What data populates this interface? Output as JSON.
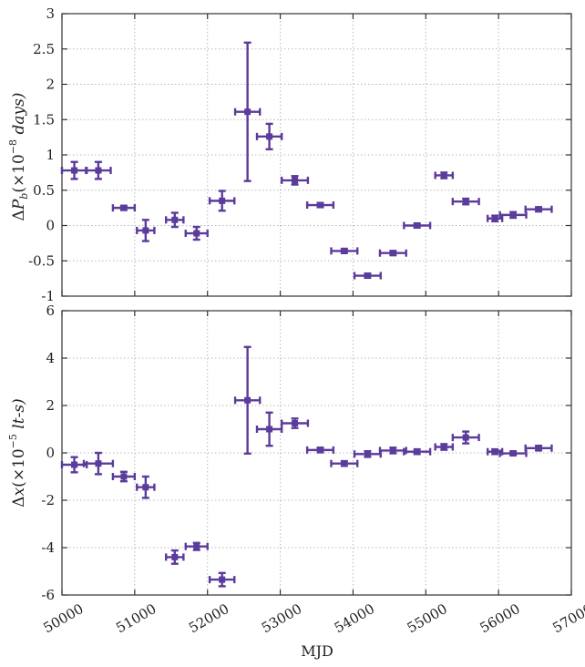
{
  "chart_data": [
    {
      "type": "scatter",
      "ylabel": "ΔP_b(×10^-8 days)",
      "xlabel": "",
      "xlim": [
        50000,
        57000
      ],
      "ylim": [
        -1,
        3
      ],
      "yticks": [
        "3",
        "2.5",
        "2",
        "1.5",
        "1",
        "0.5",
        "0",
        "-0.5",
        "-1"
      ],
      "yticks_values": [
        3,
        2.5,
        2,
        1.5,
        1,
        0.5,
        0,
        -0.5,
        -1
      ],
      "grid": true,
      "color": "#5b3b9b",
      "points": [
        {
          "x": 50170,
          "xerr": 170,
          "y": 0.78,
          "yerr": 0.12
        },
        {
          "x": 50500,
          "xerr": 170,
          "y": 0.78,
          "yerr": 0.12
        },
        {
          "x": 50850,
          "xerr": 150,
          "y": 0.25,
          "yerr": 0.03
        },
        {
          "x": 51150,
          "xerr": 120,
          "y": -0.07,
          "yerr": 0.15
        },
        {
          "x": 51550,
          "xerr": 120,
          "y": 0.08,
          "yerr": 0.1
        },
        {
          "x": 51850,
          "xerr": 150,
          "y": -0.11,
          "yerr": 0.09
        },
        {
          "x": 52200,
          "xerr": 170,
          "y": 0.35,
          "yerr": 0.14
        },
        {
          "x": 52550,
          "xerr": 170,
          "y": 1.61,
          "yerr": 0.98
        },
        {
          "x": 52850,
          "xerr": 170,
          "y": 1.26,
          "yerr": 0.18
        },
        {
          "x": 53200,
          "xerr": 180,
          "y": 0.64,
          "yerr": 0.06
        },
        {
          "x": 53550,
          "xerr": 180,
          "y": 0.29,
          "yerr": 0.03
        },
        {
          "x": 53880,
          "xerr": 180,
          "y": -0.36,
          "yerr": 0.03
        },
        {
          "x": 54200,
          "xerr": 180,
          "y": -0.71,
          "yerr": 0.03
        },
        {
          "x": 54550,
          "xerr": 180,
          "y": -0.39,
          "yerr": 0.03
        },
        {
          "x": 54880,
          "xerr": 180,
          "y": 0.0,
          "yerr": 0.03
        },
        {
          "x": 55250,
          "xerr": 120,
          "y": 0.71,
          "yerr": 0.04
        },
        {
          "x": 55550,
          "xerr": 180,
          "y": 0.34,
          "yerr": 0.04
        },
        {
          "x": 55950,
          "xerr": 100,
          "y": 0.1,
          "yerr": 0.04
        },
        {
          "x": 56200,
          "xerr": 180,
          "y": 0.15,
          "yerr": 0.04
        },
        {
          "x": 56550,
          "xerr": 180,
          "y": 0.23,
          "yerr": 0.03
        }
      ]
    },
    {
      "type": "scatter",
      "ylabel": "Δx(×10^-5 lt-s)",
      "xlabel": "MJD",
      "xlim": [
        50000,
        57000
      ],
      "ylim": [
        -6,
        6
      ],
      "xticks": [
        "50000",
        "51000",
        "52000",
        "53000",
        "54000",
        "55000",
        "56000",
        "57000"
      ],
      "xticks_values": [
        50000,
        51000,
        52000,
        53000,
        54000,
        55000,
        56000,
        57000
      ],
      "yticks": [
        "6",
        "4",
        "2",
        "0",
        "-2",
        "-4",
        "-6"
      ],
      "yticks_values": [
        6,
        4,
        2,
        0,
        -2,
        -4,
        -6
      ],
      "grid": true,
      "color": "#5b3b9b",
      "points": [
        {
          "x": 50170,
          "xerr": 170,
          "y": -0.5,
          "yerr": 0.32
        },
        {
          "x": 50500,
          "xerr": 200,
          "y": -0.45,
          "yerr": 0.45
        },
        {
          "x": 50850,
          "xerr": 150,
          "y": -1.0,
          "yerr": 0.2
        },
        {
          "x": 51150,
          "xerr": 120,
          "y": -1.45,
          "yerr": 0.45
        },
        {
          "x": 51550,
          "xerr": 120,
          "y": -4.4,
          "yerr": 0.28
        },
        {
          "x": 51850,
          "xerr": 150,
          "y": -3.95,
          "yerr": 0.15
        },
        {
          "x": 52200,
          "xerr": 170,
          "y": -5.35,
          "yerr": 0.28
        },
        {
          "x": 52550,
          "xerr": 170,
          "y": 2.22,
          "yerr": 2.25
        },
        {
          "x": 52850,
          "xerr": 170,
          "y": 1.0,
          "yerr": 0.7
        },
        {
          "x": 53200,
          "xerr": 180,
          "y": 1.25,
          "yerr": 0.2
        },
        {
          "x": 53550,
          "xerr": 180,
          "y": 0.12,
          "yerr": 0.1
        },
        {
          "x": 53880,
          "xerr": 180,
          "y": -0.45,
          "yerr": 0.1
        },
        {
          "x": 54200,
          "xerr": 180,
          "y": -0.05,
          "yerr": 0.12
        },
        {
          "x": 54550,
          "xerr": 180,
          "y": 0.1,
          "yerr": 0.12
        },
        {
          "x": 54880,
          "xerr": 180,
          "y": 0.05,
          "yerr": 0.1
        },
        {
          "x": 55250,
          "xerr": 120,
          "y": 0.25,
          "yerr": 0.12
        },
        {
          "x": 55550,
          "xerr": 180,
          "y": 0.65,
          "yerr": 0.25
        },
        {
          "x": 55950,
          "xerr": 100,
          "y": 0.05,
          "yerr": 0.1
        },
        {
          "x": 56200,
          "xerr": 180,
          "y": -0.02,
          "yerr": 0.08
        },
        {
          "x": 56550,
          "xerr": 180,
          "y": 0.2,
          "yerr": 0.1
        }
      ]
    }
  ]
}
